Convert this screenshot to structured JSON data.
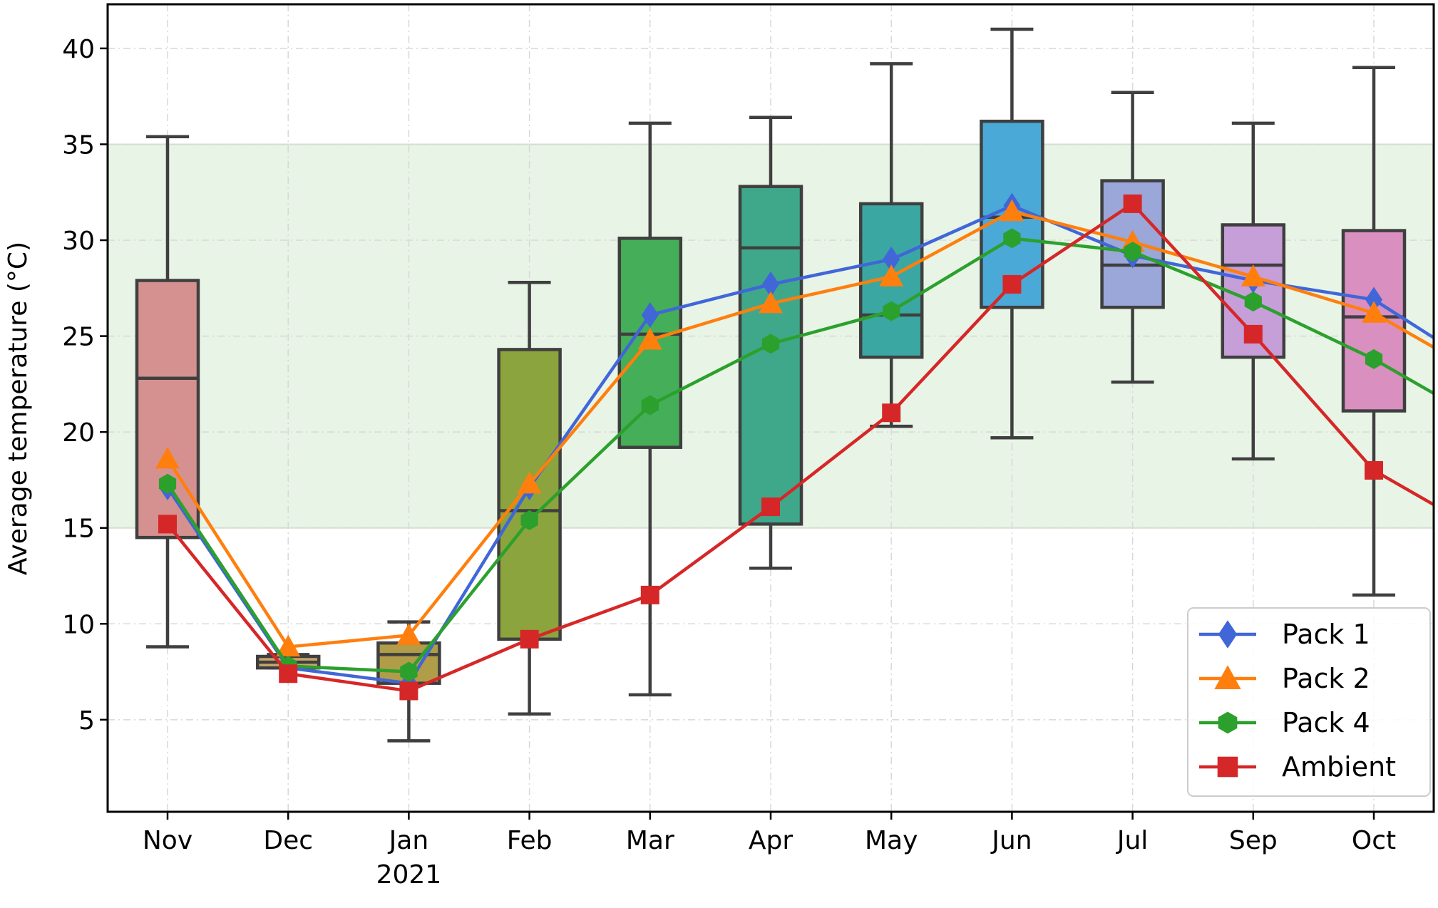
{
  "chart_data": {
    "type": "box",
    "ylabel": "Average temperature (°C)",
    "ylim": [
      0.2,
      42.3
    ],
    "yticks": [
      5,
      10,
      15,
      20,
      25,
      30,
      35,
      40
    ],
    "categories": [
      "Nov",
      "Dec",
      "Jan",
      "Feb",
      "Mar",
      "Apr",
      "May",
      "Jun",
      "Jul",
      "Sep",
      "Oct"
    ],
    "year_label": {
      "under": "Jan",
      "text": "2021"
    },
    "comfort_band": {
      "from": 15,
      "to": 35,
      "color": "#e8f4e6"
    },
    "grid": true,
    "boxes": [
      {
        "category": "Nov",
        "min": 8.8,
        "q1": 14.5,
        "median": 22.8,
        "q3": 27.9,
        "max": 35.4,
        "color": "#d5918f"
      },
      {
        "category": "Dec",
        "min": 7.7,
        "q1": 7.7,
        "median": 8.0,
        "q3": 8.3,
        "max": 8.4,
        "color": "#c9a56a"
      },
      {
        "category": "Jan",
        "min": 3.9,
        "q1": 6.9,
        "median": 8.4,
        "q3": 9.0,
        "max": 10.1,
        "color": "#b19c47"
      },
      {
        "category": "Feb",
        "min": 5.3,
        "q1": 9.2,
        "median": 15.9,
        "q3": 24.3,
        "max": 27.8,
        "color": "#8ca43d"
      },
      {
        "category": "Mar",
        "min": 6.3,
        "q1": 19.2,
        "median": 25.1,
        "q3": 30.1,
        "max": 36.1,
        "color": "#45ae58"
      },
      {
        "category": "Apr",
        "min": 12.9,
        "q1": 15.2,
        "median": 29.6,
        "q3": 32.8,
        "max": 36.4,
        "color": "#3fa88a"
      },
      {
        "category": "May",
        "min": 20.3,
        "q1": 23.9,
        "median": 26.1,
        "q3": 31.9,
        "max": 39.2,
        "color": "#3ba7a2"
      },
      {
        "category": "Jun",
        "min": 19.7,
        "q1": 26.5,
        "median": 31.2,
        "q3": 36.2,
        "max": 41.0,
        "color": "#4aa9d6"
      },
      {
        "category": "Jul",
        "min": 22.6,
        "q1": 26.5,
        "median": 28.7,
        "q3": 33.1,
        "max": 37.7,
        "color": "#9aa7d8"
      },
      {
        "category": "Sep",
        "min": 18.6,
        "q1": 23.9,
        "median": 28.7,
        "q3": 30.8,
        "max": 36.1,
        "color": "#c69ed8"
      },
      {
        "category": "Oct",
        "min": 11.5,
        "q1": 21.1,
        "median": 26.0,
        "q3": 30.5,
        "max": 39.0,
        "color": "#d98fc0"
      }
    ],
    "series": [
      {
        "name": "Pack 1",
        "color": "#4066d8",
        "marker": "diamond",
        "values": [
          17.1,
          7.7,
          6.9,
          17.1,
          26.1,
          27.7,
          29.0,
          31.8,
          29.2,
          27.9,
          26.9
        ],
        "tail": 24.9
      },
      {
        "name": "Pack 2",
        "color": "#ff7f0e",
        "marker": "triangle",
        "values": [
          18.6,
          8.8,
          9.4,
          17.3,
          24.8,
          26.7,
          28.1,
          31.5,
          29.9,
          28.1,
          26.2
        ],
        "tail": 24.4
      },
      {
        "name": "Pack 4",
        "color": "#2ca02c",
        "marker": "hexagon",
        "values": [
          17.3,
          7.8,
          7.5,
          15.4,
          21.4,
          24.6,
          26.3,
          30.1,
          29.4,
          26.8,
          23.8
        ],
        "tail": 22.0
      },
      {
        "name": "Ambient",
        "color": "#d62728",
        "marker": "square",
        "values": [
          15.2,
          7.4,
          6.5,
          9.2,
          11.5,
          16.1,
          21.0,
          27.7,
          31.9,
          25.1,
          18.0
        ],
        "tail": 16.2
      }
    ],
    "legend_position": "lower-right"
  }
}
